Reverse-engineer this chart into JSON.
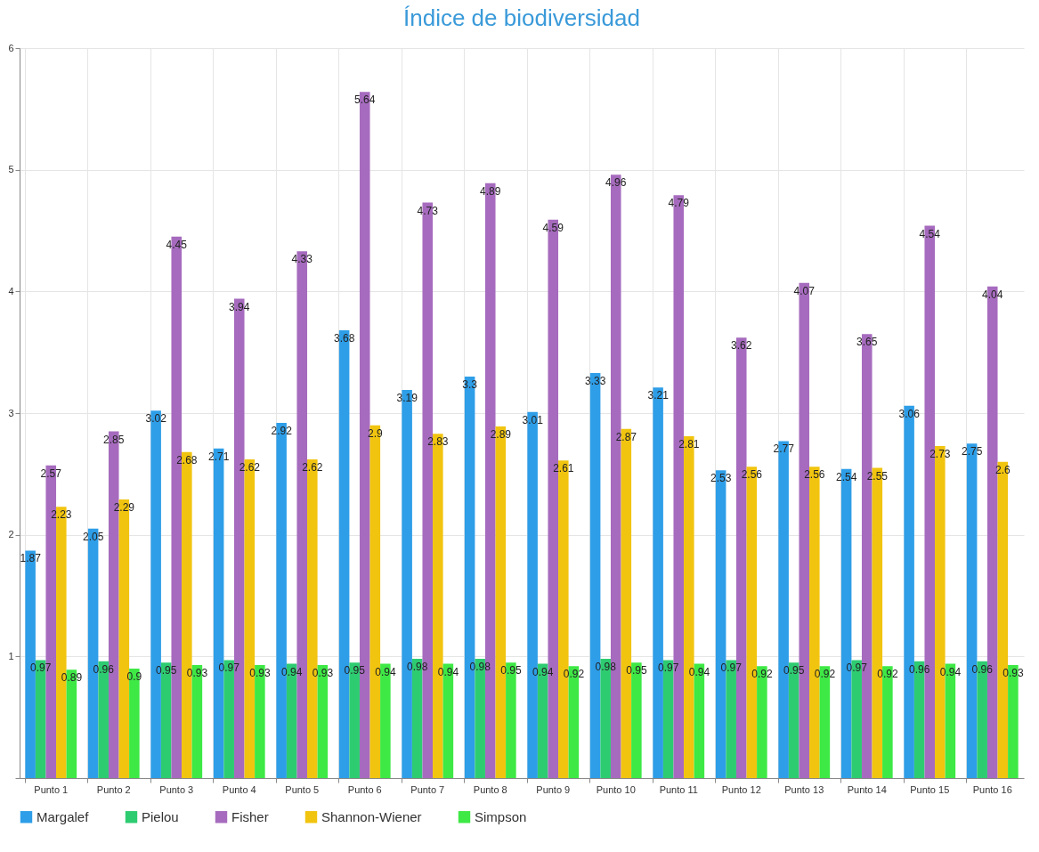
{
  "chart_data": {
    "type": "bar",
    "title": "Índice de biodiversidad",
    "categories": [
      "Punto 1",
      "Punto 2",
      "Punto 3",
      "Punto 4",
      "Punto 5",
      "Punto 6",
      "Punto 7",
      "Punto 8",
      "Punto 9",
      "Punto 10",
      "Punto 11",
      "Punto 12",
      "Punto 13",
      "Punto 14",
      "Punto 15",
      "Punto 16"
    ],
    "series": [
      {
        "name": "Margalef",
        "color": "#2e9ee8",
        "values": [
          1.87,
          2.05,
          3.02,
          2.71,
          2.92,
          3.68,
          3.19,
          3.3,
          3.01,
          3.33,
          3.21,
          2.53,
          2.77,
          2.54,
          3.06,
          2.75
        ]
      },
      {
        "name": "Pielou",
        "color": "#2ecc71",
        "values": [
          0.97,
          0.96,
          0.95,
          0.97,
          0.94,
          0.95,
          0.98,
          0.98,
          0.94,
          0.98,
          0.97,
          0.97,
          0.95,
          0.97,
          0.96,
          0.96
        ]
      },
      {
        "name": "Fisher",
        "color": "#a66bbe",
        "values": [
          2.57,
          2.85,
          4.45,
          3.94,
          4.33,
          5.64,
          4.73,
          4.89,
          4.59,
          4.96,
          4.79,
          3.62,
          4.07,
          3.65,
          4.54,
          4.04
        ]
      },
      {
        "name": "Shannon-Wiener",
        "color": "#f1c40f",
        "values": [
          2.23,
          2.29,
          2.68,
          2.62,
          2.62,
          2.9,
          2.83,
          2.89,
          2.61,
          2.87,
          2.81,
          2.56,
          2.56,
          2.55,
          2.73,
          2.6
        ]
      },
      {
        "name": "Simpson",
        "color": "#3ee845",
        "values": [
          0.89,
          0.9,
          0.93,
          0.93,
          0.93,
          0.94,
          0.94,
          0.95,
          0.92,
          0.95,
          0.94,
          0.92,
          0.92,
          0.92,
          0.94,
          0.93
        ]
      }
    ],
    "ylim": [
      0,
      6
    ],
    "yticks": [
      {
        "value": 0,
        "label": null
      },
      1,
      2,
      3,
      4,
      5,
      6
    ],
    "grid": true,
    "legend": "bottom",
    "data_labels": true
  }
}
